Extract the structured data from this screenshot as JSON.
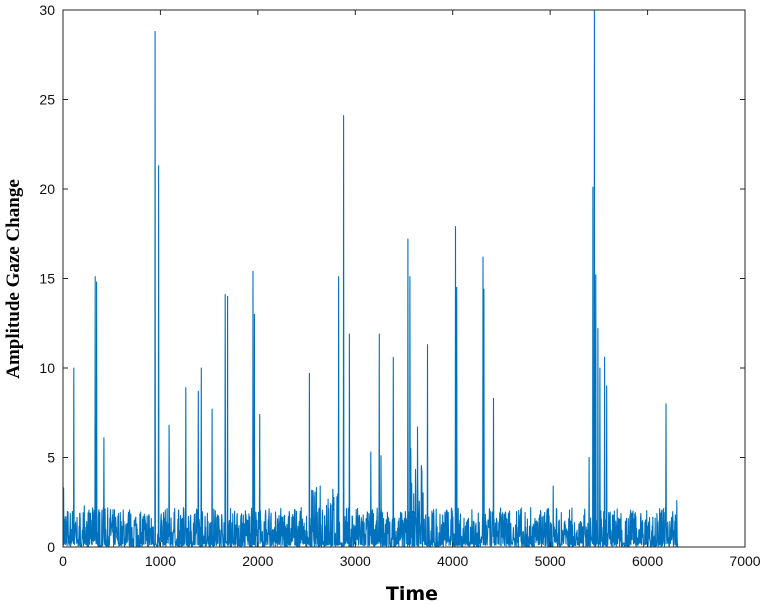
{
  "chart_data": {
    "type": "line",
    "title": "",
    "xlabel": "Time",
    "ylabel": "Amplitude Gaze Change",
    "xlim": [
      0,
      7000
    ],
    "ylim": [
      0,
      30
    ],
    "xticks": [
      0,
      1000,
      2000,
      3000,
      4000,
      5000,
      6000,
      7000
    ],
    "yticks": [
      0,
      5,
      10,
      15,
      20,
      25,
      30
    ],
    "grid": false,
    "legend": null,
    "color": "#0072BD",
    "n_points": 6310,
    "baseline_range": [
      0,
      2
    ],
    "peaks": [
      {
        "x": 5,
        "y": 3.3
      },
      {
        "x": 110,
        "y": 10.0
      },
      {
        "x": 220,
        "y": 2.3
      },
      {
        "x": 330,
        "y": 15.1
      },
      {
        "x": 345,
        "y": 14.8
      },
      {
        "x": 420,
        "y": 6.1
      },
      {
        "x": 945,
        "y": 28.8
      },
      {
        "x": 980,
        "y": 21.3
      },
      {
        "x": 1090,
        "y": 6.8
      },
      {
        "x": 1260,
        "y": 8.9
      },
      {
        "x": 1390,
        "y": 8.7
      },
      {
        "x": 1420,
        "y": 10.0
      },
      {
        "x": 1530,
        "y": 7.7
      },
      {
        "x": 1665,
        "y": 14.1
      },
      {
        "x": 1690,
        "y": 14.0
      },
      {
        "x": 1950,
        "y": 15.4
      },
      {
        "x": 1965,
        "y": 13.0
      },
      {
        "x": 2020,
        "y": 7.4
      },
      {
        "x": 2530,
        "y": 9.7
      },
      {
        "x": 2640,
        "y": 3.4
      },
      {
        "x": 2830,
        "y": 15.1
      },
      {
        "x": 2880,
        "y": 24.1
      },
      {
        "x": 2940,
        "y": 11.9
      },
      {
        "x": 3160,
        "y": 5.3
      },
      {
        "x": 3245,
        "y": 11.9
      },
      {
        "x": 3265,
        "y": 5.1
      },
      {
        "x": 3390,
        "y": 10.6
      },
      {
        "x": 3540,
        "y": 17.2
      },
      {
        "x": 3560,
        "y": 15.1
      },
      {
        "x": 3570,
        "y": 5.5
      },
      {
        "x": 3640,
        "y": 6.7
      },
      {
        "x": 3740,
        "y": 11.3
      },
      {
        "x": 4030,
        "y": 17.9
      },
      {
        "x": 4040,
        "y": 14.5
      },
      {
        "x": 4310,
        "y": 16.2
      },
      {
        "x": 4320,
        "y": 14.4
      },
      {
        "x": 4420,
        "y": 8.3
      },
      {
        "x": 5030,
        "y": 3.4
      },
      {
        "x": 5400,
        "y": 5.0
      },
      {
        "x": 5440,
        "y": 20.1
      },
      {
        "x": 5455,
        "y": 30.0
      },
      {
        "x": 5470,
        "y": 15.2
      },
      {
        "x": 5490,
        "y": 12.2
      },
      {
        "x": 5510,
        "y": 10.0
      },
      {
        "x": 5560,
        "y": 10.6
      },
      {
        "x": 5580,
        "y": 9.0
      },
      {
        "x": 6190,
        "y": 8.0
      },
      {
        "x": 6300,
        "y": 2.6
      }
    ],
    "elevated_regions": [
      {
        "x0": 2550,
        "x1": 2850,
        "baseline_max": 3.2
      },
      {
        "x0": 3560,
        "x1": 3700,
        "baseline_max": 4.5
      }
    ],
    "gaps": [
      {
        "x0": 935,
        "x1": 965
      },
      {
        "x0": 1670,
        "x1": 1700
      },
      {
        "x0": 2850,
        "x1": 2890
      },
      {
        "x0": 5430,
        "x1": 5470
      }
    ]
  }
}
